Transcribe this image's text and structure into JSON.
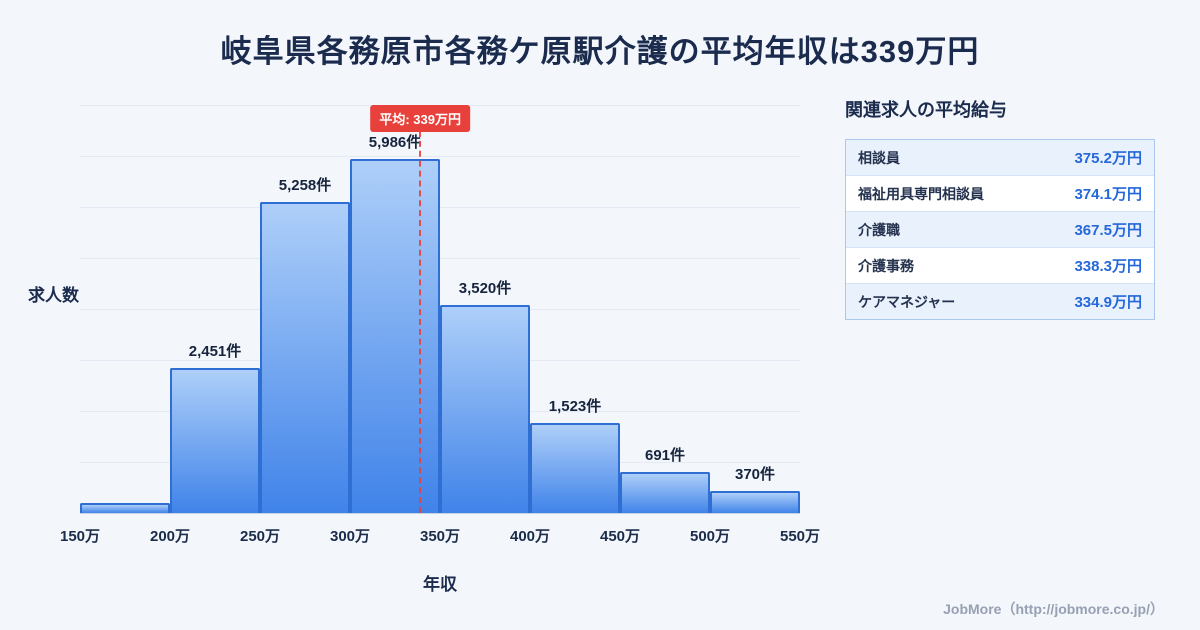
{
  "page": {
    "title": "岐阜県各務原市各務ケ原駅介護の平均年収は339万円"
  },
  "chart_data": {
    "type": "bar",
    "title": "岐阜県各務原市各務ケ原駅介護の平均年収は339万円",
    "xlabel": "年収",
    "ylabel": "求人数",
    "categories": [
      "150万-200万",
      "200万-250万",
      "250万-300万",
      "300万-350万",
      "350万-400万",
      "400万-450万",
      "450万-500万",
      "500万-550万"
    ],
    "tick_labels": [
      "150万",
      "200万",
      "250万",
      "300万",
      "350万",
      "400万",
      "450万",
      "500万",
      "550万"
    ],
    "values": [
      170,
      2451,
      5258,
      5986,
      3520,
      1523,
      691,
      370
    ],
    "bar_labels": [
      "",
      "2,451件",
      "5,258件",
      "5,986件",
      "3,520件",
      "1,523件",
      "691件",
      "370件"
    ],
    "ylim": [
      0,
      6900
    ],
    "x_range": [
      150,
      550
    ],
    "grid": true,
    "legend": "none",
    "average_line": {
      "x_value": 339,
      "label": "平均: 339万円",
      "color": "#e8413c"
    }
  },
  "side_panel": {
    "heading": "関連求人の平均給与",
    "rows": [
      {
        "name": "相談員",
        "value": "375.2万円"
      },
      {
        "name": "福祉用具専門相談員",
        "value": "374.1万円"
      },
      {
        "name": "介護職",
        "value": "367.5万円"
      },
      {
        "name": "介護事務",
        "value": "338.3万円"
      },
      {
        "name": "ケアマネジャー",
        "value": "334.9万円"
      }
    ]
  },
  "footer": {
    "credit": "JobMore（http://jobmore.co.jp/）"
  },
  "colors": {
    "background": "#f3f6fb",
    "title_text": "#1a2b4d",
    "bar_top": "#aecff9",
    "bar_bottom": "#4083e9",
    "bar_border": "#2f6fd4",
    "average_red": "#e8413c",
    "value_blue": "#2468d9",
    "grid_line": "#e4eaf4"
  }
}
